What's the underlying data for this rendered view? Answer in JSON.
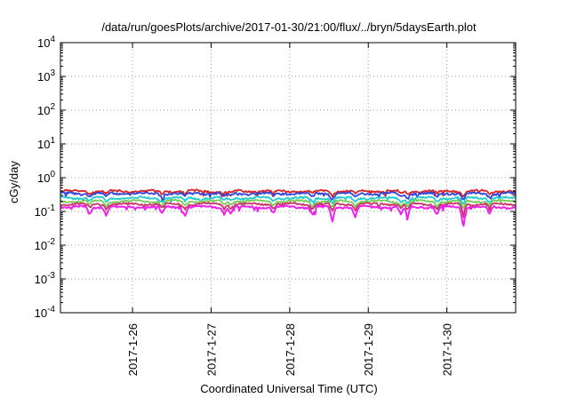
{
  "chart_data": {
    "type": "line",
    "title": "/data/run/goesPlots/archive/2017-01-30/21:00/flux/../bryn/5daysEarth.plot",
    "xlabel": "Coordinated Universal Time (UTC)",
    "ylabel": "cGy/day",
    "yscale": "log",
    "ylim": [
      0.0001,
      10000
    ],
    "xlim": [
      "2017-01-25 02:00",
      "2017-01-30 21:00"
    ],
    "y_ticks": [
      {
        "base": "10",
        "exp": "-4"
      },
      {
        "base": "10",
        "exp": "-3"
      },
      {
        "base": "10",
        "exp": "-2"
      },
      {
        "base": "10",
        "exp": "-1"
      },
      {
        "base": "10",
        "exp": "0"
      },
      {
        "base": "10",
        "exp": "1"
      },
      {
        "base": "10",
        "exp": "2"
      },
      {
        "base": "10",
        "exp": "3"
      },
      {
        "base": "10",
        "exp": "4"
      }
    ],
    "x_ticks": [
      {
        "label": "2017-1-26",
        "time": "2017-01-26 00:00"
      },
      {
        "label": "2017-1-27",
        "time": "2017-01-27 00:00"
      },
      {
        "label": "2017-1-28",
        "time": "2017-01-28 00:00"
      },
      {
        "label": "2017-1-29",
        "time": "2017-01-29 00:00"
      },
      {
        "label": "2017-1-30",
        "time": "2017-01-30 00:00"
      }
    ],
    "grid": true,
    "legend": "none",
    "series": [
      {
        "color": "#dd2222",
        "level": 0.4,
        "noise": 0.06,
        "dip_depth": 0.35,
        "seed": 11
      },
      {
        "color": "#3344dd",
        "level": 0.34,
        "noise": 0.07,
        "dip_depth": 0.45,
        "seed": 23
      },
      {
        "color": "#22cccc",
        "level": 0.25,
        "noise": 0.06,
        "dip_depth": 0.45,
        "seed": 37
      },
      {
        "color": "#77cc55",
        "level": 0.2,
        "noise": 0.05,
        "dip_depth": 0.5,
        "seed": 41
      },
      {
        "color": "#cc3366",
        "level": 0.165,
        "noise": 0.05,
        "dip_depth": 0.55,
        "seed": 53
      },
      {
        "color": "#ee22ee",
        "level": 0.135,
        "noise": 0.05,
        "dip_depth": 0.9,
        "seed": 67
      }
    ],
    "dips": [
      {
        "time": "2017-01-25 11:00",
        "factor": 0.55
      },
      {
        "time": "2017-01-25 16:00",
        "factor": 0.5
      },
      {
        "time": "2017-01-26 09:00",
        "factor": 0.55
      },
      {
        "time": "2017-01-26 16:00",
        "factor": 0.5
      },
      {
        "time": "2017-01-27 04:00",
        "factor": 0.6
      },
      {
        "time": "2017-01-27 06:00",
        "factor": 0.6
      },
      {
        "time": "2017-01-27 19:00",
        "factor": 0.6
      },
      {
        "time": "2017-01-28 07:00",
        "factor": 0.5
      },
      {
        "time": "2017-01-28 13:00",
        "factor": 0.25
      },
      {
        "time": "2017-01-28 20:00",
        "factor": 0.45
      },
      {
        "time": "2017-01-29 10:00",
        "factor": 0.5
      },
      {
        "time": "2017-01-29 12:00",
        "factor": 0.4
      },
      {
        "time": "2017-01-29 21:00",
        "factor": 0.5
      },
      {
        "time": "2017-01-30 05:00",
        "factor": 0.12
      },
      {
        "time": "2017-01-30 13:00",
        "factor": 0.55
      }
    ]
  }
}
